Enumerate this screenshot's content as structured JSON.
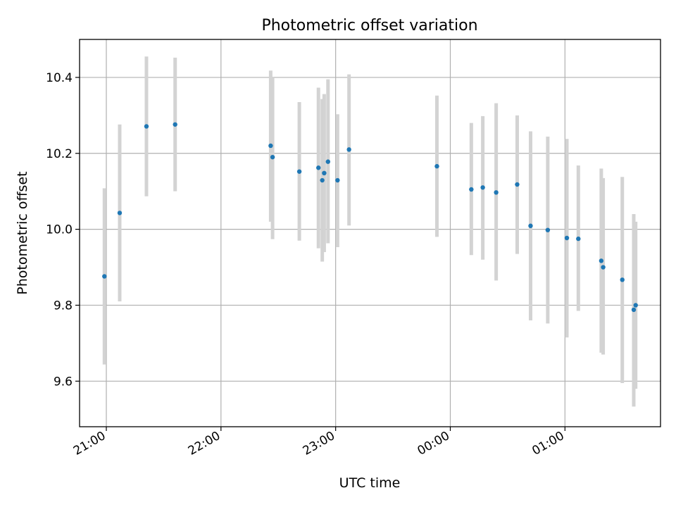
{
  "chart_data": {
    "type": "scatter",
    "title": "Photometric offset variation",
    "xlabel": "UTC time",
    "ylabel": "Photometric offset",
    "x_ticks": [
      "21:00",
      "22:00",
      "23:00",
      "00:00",
      "01:00"
    ],
    "y_ticks": [
      "9.6",
      "9.8",
      "10.0",
      "10.2",
      "10.4"
    ],
    "x_tick_times": [
      "21:00",
      "22:00",
      "23:00",
      "00:00",
      "01:00"
    ],
    "xlim": [
      "20:46",
      "25:50"
    ],
    "ylim": [
      9.48,
      10.5
    ],
    "grid": true,
    "colors": {
      "point": "#1f77b4",
      "errorbar": "#d3d3d3",
      "grid": "#b0b0b0"
    },
    "series": [
      {
        "points": [
          {
            "x": "20:59",
            "y": 9.876,
            "yerr_low": 9.644,
            "yerr_high": 10.108
          },
          {
            "x": "21:07",
            "y": 10.043,
            "yerr_low": 9.81,
            "yerr_high": 10.276
          },
          {
            "x": "21:21",
            "y": 10.271,
            "yerr_low": 10.087,
            "yerr_high": 10.455
          },
          {
            "x": "21:36",
            "y": 10.276,
            "yerr_low": 10.1,
            "yerr_high": 10.452
          },
          {
            "x": "22:26",
            "y": 10.22,
            "yerr_low": 10.02,
            "yerr_high": 10.418
          },
          {
            "x": "22:27",
            "y": 10.19,
            "yerr_low": 9.974,
            "yerr_high": 10.4
          },
          {
            "x": "22:41",
            "y": 10.152,
            "yerr_low": 9.97,
            "yerr_high": 10.335
          },
          {
            "x": "22:51",
            "y": 10.162,
            "yerr_low": 9.95,
            "yerr_high": 10.373
          },
          {
            "x": "22:53",
            "y": 10.129,
            "yerr_low": 9.915,
            "yerr_high": 10.343
          },
          {
            "x": "22:54",
            "y": 10.148,
            "yerr_low": 9.94,
            "yerr_high": 10.356
          },
          {
            "x": "22:56",
            "y": 10.178,
            "yerr_low": 9.963,
            "yerr_high": 10.395
          },
          {
            "x": "23:01",
            "y": 10.129,
            "yerr_low": 9.953,
            "yerr_high": 10.303
          },
          {
            "x": "23:07",
            "y": 10.21,
            "yerr_low": 10.01,
            "yerr_high": 10.408
          },
          {
            "x": "23:53",
            "y": 10.166,
            "yerr_low": 9.98,
            "yerr_high": 10.352
          },
          {
            "x": "24:11",
            "y": 10.105,
            "yerr_low": 9.932,
            "yerr_high": 10.28
          },
          {
            "x": "24:17",
            "y": 10.11,
            "yerr_low": 9.92,
            "yerr_high": 10.298
          },
          {
            "x": "24:24",
            "y": 10.097,
            "yerr_low": 9.865,
            "yerr_high": 10.332
          },
          {
            "x": "24:35",
            "y": 10.118,
            "yerr_low": 9.935,
            "yerr_high": 10.3
          },
          {
            "x": "24:42",
            "y": 10.009,
            "yerr_low": 9.76,
            "yerr_high": 10.258
          },
          {
            "x": "24:51",
            "y": 9.998,
            "yerr_low": 9.752,
            "yerr_high": 10.244
          },
          {
            "x": "25:01",
            "y": 9.977,
            "yerr_low": 9.715,
            "yerr_high": 10.238
          },
          {
            "x": "25:07",
            "y": 9.975,
            "yerr_low": 9.785,
            "yerr_high": 10.168
          },
          {
            "x": "25:19",
            "y": 9.917,
            "yerr_low": 9.675,
            "yerr_high": 10.16
          },
          {
            "x": "25:20",
            "y": 9.9,
            "yerr_low": 9.67,
            "yerr_high": 10.135
          },
          {
            "x": "25:30",
            "y": 9.867,
            "yerr_low": 9.595,
            "yerr_high": 10.138
          },
          {
            "x": "25:36",
            "y": 9.788,
            "yerr_low": 9.533,
            "yerr_high": 10.04
          },
          {
            "x": "25:37",
            "y": 9.8,
            "yerr_low": 9.58,
            "yerr_high": 10.02
          }
        ]
      }
    ]
  }
}
